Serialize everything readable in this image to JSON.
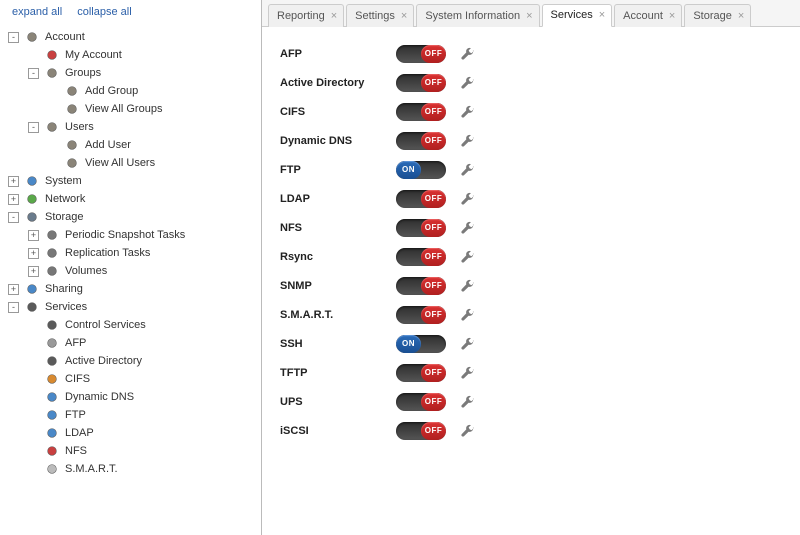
{
  "sidebar": {
    "expand": "expand all",
    "collapse": "collapse all",
    "tree": [
      {
        "lvl": 0,
        "toggle": "-",
        "iconColor": "#8a8478",
        "label": "Account"
      },
      {
        "lvl": 1,
        "toggle": " ",
        "iconColor": "#c84040",
        "label": "My Account"
      },
      {
        "lvl": 1,
        "toggle": "-",
        "iconColor": "#8a8478",
        "label": "Groups"
      },
      {
        "lvl": 2,
        "toggle": " ",
        "iconColor": "#8a8478",
        "label": "Add Group"
      },
      {
        "lvl": 2,
        "toggle": " ",
        "iconColor": "#8a8478",
        "label": "View All Groups"
      },
      {
        "lvl": 1,
        "toggle": "-",
        "iconColor": "#8a8478",
        "label": "Users"
      },
      {
        "lvl": 2,
        "toggle": " ",
        "iconColor": "#8a8478",
        "label": "Add User"
      },
      {
        "lvl": 2,
        "toggle": " ",
        "iconColor": "#8a8478",
        "label": "View All Users"
      },
      {
        "lvl": 0,
        "toggle": "+",
        "iconColor": "#4a88c7",
        "label": "System"
      },
      {
        "lvl": 0,
        "toggle": "+",
        "iconColor": "#5aa84a",
        "label": "Network"
      },
      {
        "lvl": 0,
        "toggle": "-",
        "iconColor": "#6a7b8c",
        "label": "Storage"
      },
      {
        "lvl": 1,
        "toggle": "+",
        "iconColor": "#777",
        "label": "Periodic Snapshot Tasks"
      },
      {
        "lvl": 1,
        "toggle": "+",
        "iconColor": "#777",
        "label": "Replication Tasks"
      },
      {
        "lvl": 1,
        "toggle": "+",
        "iconColor": "#777",
        "label": "Volumes"
      },
      {
        "lvl": 0,
        "toggle": "+",
        "iconColor": "#4a88c7",
        "label": "Sharing"
      },
      {
        "lvl": 0,
        "toggle": "-",
        "iconColor": "#5a5a5a",
        "label": "Services"
      },
      {
        "lvl": 1,
        "toggle": " ",
        "iconColor": "#5a5a5a",
        "label": "Control Services"
      },
      {
        "lvl": 1,
        "toggle": " ",
        "iconColor": "#999",
        "label": "AFP"
      },
      {
        "lvl": 1,
        "toggle": " ",
        "iconColor": "#5a5a5a",
        "label": "Active Directory"
      },
      {
        "lvl": 1,
        "toggle": " ",
        "iconColor": "#d88a30",
        "label": "CIFS"
      },
      {
        "lvl": 1,
        "toggle": " ",
        "iconColor": "#4a88c7",
        "label": "Dynamic DNS"
      },
      {
        "lvl": 1,
        "toggle": " ",
        "iconColor": "#4a88c7",
        "label": "FTP"
      },
      {
        "lvl": 1,
        "toggle": " ",
        "iconColor": "#4a88c7",
        "label": "LDAP"
      },
      {
        "lvl": 1,
        "toggle": " ",
        "iconColor": "#c84040",
        "label": "NFS"
      },
      {
        "lvl": 1,
        "toggle": " ",
        "iconColor": "#bbb",
        "label": "S.M.A.R.T."
      }
    ]
  },
  "tabs": [
    {
      "label": "Reporting",
      "active": false
    },
    {
      "label": "Settings",
      "active": false
    },
    {
      "label": "System Information",
      "active": false
    },
    {
      "label": "Services",
      "active": true
    },
    {
      "label": "Account",
      "active": false
    },
    {
      "label": "Storage",
      "active": false
    }
  ],
  "onLabel": "ON",
  "offLabel": "OFF",
  "services": [
    {
      "name": "AFP",
      "on": false
    },
    {
      "name": "Active Directory",
      "on": false
    },
    {
      "name": "CIFS",
      "on": false
    },
    {
      "name": "Dynamic DNS",
      "on": false
    },
    {
      "name": "FTP",
      "on": true
    },
    {
      "name": "LDAP",
      "on": false
    },
    {
      "name": "NFS",
      "on": false
    },
    {
      "name": "Rsync",
      "on": false
    },
    {
      "name": "SNMP",
      "on": false
    },
    {
      "name": "S.M.A.R.T.",
      "on": false
    },
    {
      "name": "SSH",
      "on": true
    },
    {
      "name": "TFTP",
      "on": false
    },
    {
      "name": "UPS",
      "on": false
    },
    {
      "name": "iSCSI",
      "on": false
    }
  ]
}
